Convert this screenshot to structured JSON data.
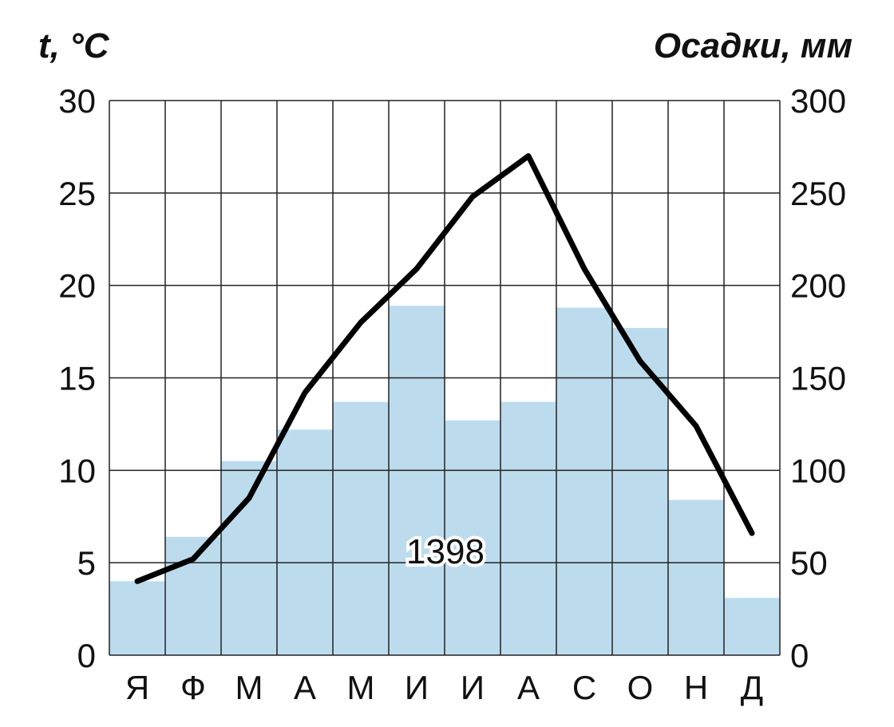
{
  "chart_data": {
    "type": "bar",
    "left_axis_label": "t, °C",
    "right_axis_label": "Осадки, мм",
    "categories": [
      "Я",
      "Ф",
      "М",
      "А",
      "М",
      "И",
      "И",
      "А",
      "С",
      "О",
      "Н",
      "Д"
    ],
    "left_ticks": [
      "0",
      "5",
      "10",
      "15",
      "20",
      "25",
      "30"
    ],
    "right_ticks": [
      "0",
      "50",
      "100",
      "150",
      "200",
      "250",
      "300"
    ],
    "left_ylim": [
      0,
      30
    ],
    "right_ylim": [
      0,
      300
    ],
    "grid": true,
    "annotation": "1398",
    "series": [
      {
        "kind": "bar",
        "axis": "right",
        "color": "#bcdcee",
        "values": [
          40,
          64,
          105,
          122,
          137,
          189,
          127,
          137,
          188,
          177,
          84,
          31
        ]
      },
      {
        "kind": "line",
        "axis": "left",
        "color": "#000000",
        "values": [
          4.0,
          5.2,
          8.5,
          14.2,
          18.0,
          20.9,
          24.8,
          27.0,
          20.9,
          15.9,
          12.4,
          6.6
        ]
      }
    ]
  }
}
